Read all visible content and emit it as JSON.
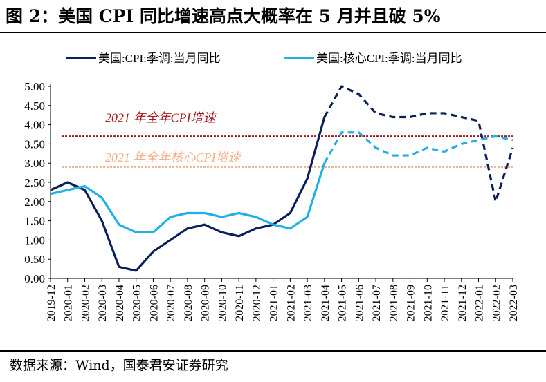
{
  "figure": {
    "title": "图 2：美国 CPI 同比增速高点大概率在 5 月并且破 5%",
    "source": "数据来源：Wind，国泰君安证券研究"
  },
  "chart_data": {
    "type": "line",
    "categories": [
      "2019-12",
      "2020-01",
      "2020-02",
      "2020-03",
      "2020-04",
      "2020-05",
      "2020-06",
      "2020-07",
      "2020-08",
      "2020-09",
      "2020-10",
      "2020-11",
      "2020-12",
      "2021-01",
      "2021-02",
      "2021-03",
      "2021-04",
      "2021-05",
      "2021-06",
      "2021-07",
      "2021-08",
      "2021-09",
      "2021-10",
      "2021-11",
      "2021-12",
      "2022-01",
      "2022-02",
      "2022-03"
    ],
    "ylim": [
      0,
      5
    ],
    "yticks": [
      "0.00",
      "0.50",
      "1.00",
      "1.50",
      "2.00",
      "2.50",
      "3.00",
      "3.50",
      "4.00",
      "4.50",
      "5.00"
    ],
    "grid": false,
    "legend_position": "top",
    "series": [
      {
        "name": "美国:CPI:季调:当月同比",
        "color": "#0b1f5c",
        "actual_until_index": 16,
        "values": [
          2.3,
          2.5,
          2.3,
          1.5,
          0.3,
          0.2,
          0.7,
          1.0,
          1.3,
          1.4,
          1.2,
          1.1,
          1.3,
          1.4,
          1.7,
          2.6,
          4.2,
          5.0,
          4.8,
          4.3,
          4.2,
          4.2,
          4.3,
          4.3,
          4.2,
          4.1,
          2.0,
          3.4
        ]
      },
      {
        "name": "美国:核心CPI:季调:当月同比",
        "color": "#1fb0e8",
        "actual_until_index": 16,
        "values": [
          2.2,
          2.3,
          2.4,
          2.1,
          1.4,
          1.2,
          1.2,
          1.6,
          1.7,
          1.7,
          1.6,
          1.7,
          1.6,
          1.4,
          1.3,
          1.6,
          3.0,
          3.8,
          3.8,
          3.4,
          3.2,
          3.2,
          3.4,
          3.3,
          3.5,
          3.6,
          3.7,
          3.6
        ]
      }
    ],
    "reference_lines": [
      {
        "label": "2021 年全年CPI增速",
        "value": 3.7,
        "color": "#a31a1a"
      },
      {
        "label": "2021 年全年核心CPI增速",
        "value": 2.9,
        "color": "#f0b08a"
      }
    ]
  }
}
